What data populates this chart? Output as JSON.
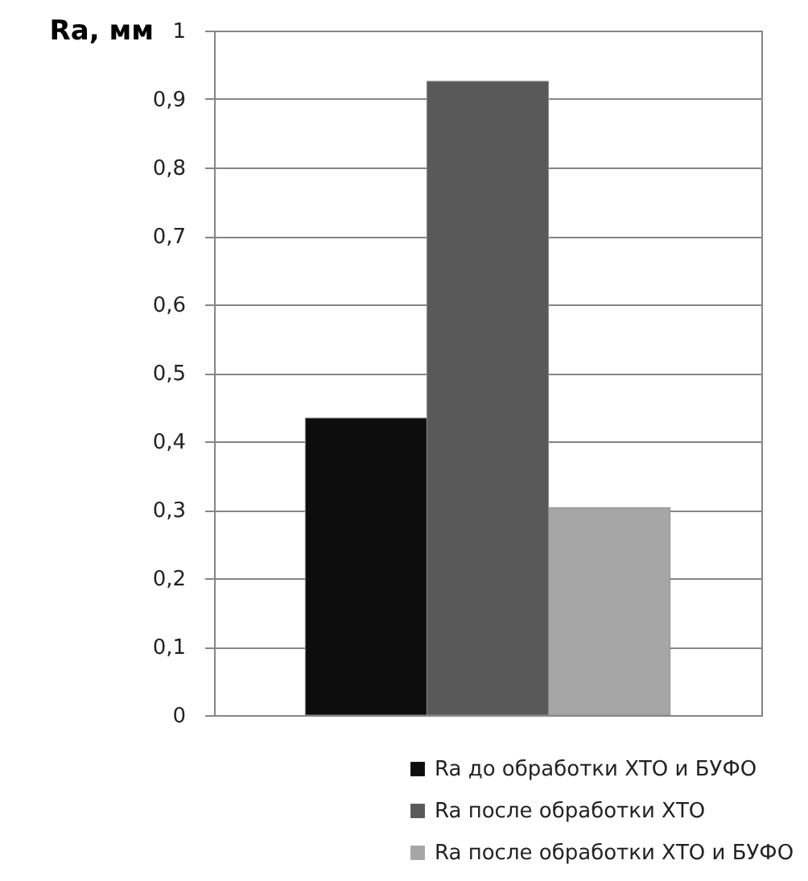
{
  "chart_data": {
    "type": "bar",
    "ylabel": "Ra, мм",
    "categories": [
      null
    ],
    "series": [
      {
        "name": "Ra до обработки ХТО и БУФО",
        "color": "#0d0d0d",
        "values": [
          0.434
        ]
      },
      {
        "name": "Ra после обработки ХТО",
        "color": "#595959",
        "values": [
          0.926
        ]
      },
      {
        "name": "Ra после обработки ХТО и БУФО",
        "color": "#a6a6a6",
        "values": [
          0.303
        ]
      }
    ],
    "ylim": [
      0,
      1
    ],
    "yticks": [
      0,
      {
        "value": 0.1,
        "label": "0,1"
      },
      {
        "value": 0.2,
        "label": "0,2"
      },
      {
        "value": 0.3,
        "label": "0,3"
      },
      {
        "value": 0.4,
        "label": "0,4"
      },
      {
        "value": 0.5,
        "label": "0,5"
      },
      {
        "value": 0.6,
        "label": "0,6"
      },
      {
        "value": 0.7,
        "label": "0,7"
      },
      {
        "value": 0.8,
        "label": "0,8"
      },
      {
        "value": 0.9,
        "label": "0,9"
      },
      1
    ],
    "grid": "y",
    "legend": "bottom",
    "tick_labels": "y"
  }
}
